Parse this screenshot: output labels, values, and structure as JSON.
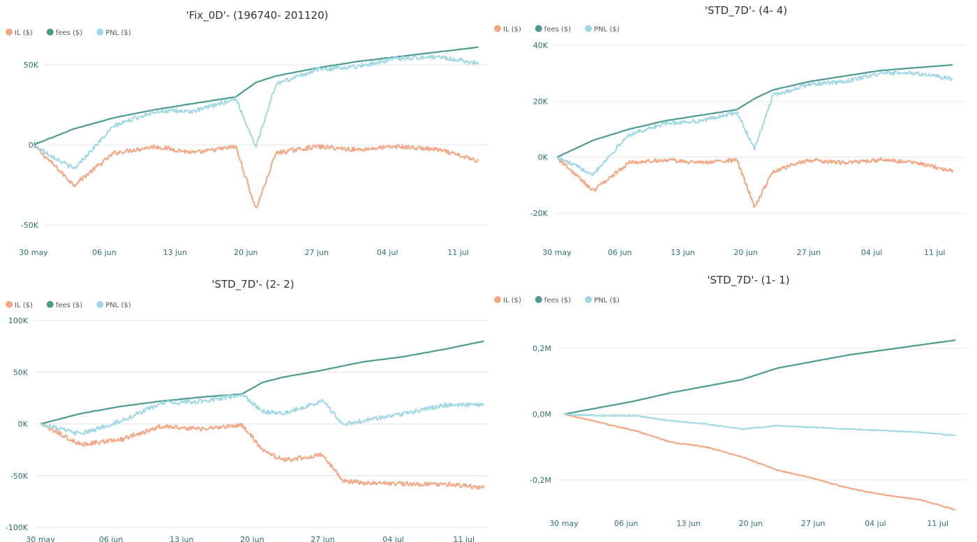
{
  "chart_data": [
    {
      "type": "line",
      "title": "'Fix_0D'- (196740- 201120)",
      "legend": [
        "IL ($)",
        "fees ($)",
        "PNL ($)"
      ],
      "legend_position": "top-left",
      "grid": true,
      "x_ticks": [
        "30 may",
        "06 jun",
        "13 jun",
        "20 jun",
        "27 jun",
        "04 jul",
        "11 jul"
      ],
      "y_ticks": [
        "50K",
        "0K",
        "-50K"
      ],
      "y_tick_values": [
        50000,
        0,
        -50000
      ],
      "ylim": [
        -55000,
        72000
      ],
      "x_days": [
        0,
        4,
        8,
        12,
        16,
        20,
        22,
        24,
        28,
        32,
        36,
        40,
        44
      ],
      "series": [
        {
          "name": "IL ($)",
          "color": "#f4a582",
          "values": [
            0,
            -25000,
            -5000,
            -1000,
            -5000,
            -1000,
            -40000,
            -5000,
            -1000,
            -3000,
            -1000,
            -3000,
            -10000
          ]
        },
        {
          "name": "fees ($)",
          "color": "#4d9a91",
          "values": [
            0,
            10000,
            17000,
            22000,
            26000,
            30000,
            39000,
            43000,
            48000,
            52000,
            55000,
            58000,
            61000
          ]
        },
        {
          "name": "PNL ($)",
          "color": "#9fd8e3",
          "values": [
            0,
            -15000,
            12000,
            21000,
            21000,
            29000,
            -1000,
            38000,
            47000,
            49000,
            54000,
            55000,
            51000
          ]
        }
      ]
    },
    {
      "type": "line",
      "title": "'STD_7D'- (4- 4)",
      "legend": [
        "IL ($)",
        "fees ($)",
        "PNL ($)"
      ],
      "legend_position": "top-left",
      "grid": true,
      "x_ticks": [
        "30 may",
        "06 jun",
        "13 jun",
        "20 jun",
        "27 jun",
        "04 jul",
        "11 jul"
      ],
      "y_ticks": [
        "40K",
        "20K",
        "0K",
        "-20K"
      ],
      "y_tick_values": [
        40000,
        20000,
        0,
        -20000
      ],
      "ylim": [
        -25000,
        40000
      ],
      "x_days": [
        0,
        4,
        8,
        12,
        16,
        20,
        22,
        24,
        28,
        32,
        36,
        40,
        44
      ],
      "series": [
        {
          "name": "IL ($)",
          "color": "#f4a582",
          "values": [
            0,
            -12000,
            -2000,
            -1000,
            -2000,
            -1000,
            -18000,
            -5000,
            -1000,
            -2000,
            -1000,
            -2000,
            -5000
          ]
        },
        {
          "name": "fees ($)",
          "color": "#4d9a91",
          "values": [
            0,
            6000,
            10000,
            13000,
            15000,
            17000,
            21000,
            24000,
            27000,
            29000,
            31000,
            32000,
            33000
          ]
        },
        {
          "name": "PNL ($)",
          "color": "#9fd8e3",
          "values": [
            0,
            -6000,
            8000,
            12000,
            13000,
            16000,
            3000,
            22000,
            26000,
            27000,
            30000,
            30000,
            28000
          ]
        }
      ]
    },
    {
      "type": "line",
      "title": "'STD_7D'- (2- 2)",
      "legend": [
        "IL ($)",
        "fees ($)",
        "PNL ($)"
      ],
      "legend_position": "top-left",
      "grid": true,
      "x_ticks": [
        "30 may",
        "06 jun",
        "13 jun",
        "20 jun",
        "27 jun",
        "04 jul",
        "11 jul"
      ],
      "y_ticks": [
        "100K",
        "50K",
        "0K",
        "-50K",
        "-100K"
      ],
      "y_tick_values": [
        100000,
        50000,
        0,
        -50000,
        -100000
      ],
      "ylim": [
        -100000,
        100000
      ],
      "x_days": [
        0,
        4,
        8,
        12,
        16,
        20,
        22,
        24,
        28,
        30,
        32,
        36,
        40,
        44
      ],
      "series": [
        {
          "name": "IL ($)",
          "color": "#f4a582",
          "values": [
            0,
            -20000,
            -15000,
            -2000,
            -5000,
            -1000,
            -25000,
            -35000,
            -30000,
            -55000,
            -57000,
            -58000,
            -58000,
            -62000
          ]
        },
        {
          "name": "fees ($)",
          "color": "#4d9a91",
          "values": [
            0,
            10000,
            17000,
            22000,
            26000,
            29000,
            40000,
            45000,
            52000,
            56000,
            60000,
            65000,
            72000,
            80000
          ]
        },
        {
          "name": "PNL ($)",
          "color": "#9fd8e3",
          "values": [
            0,
            -10000,
            3000,
            20000,
            22000,
            28000,
            12000,
            10000,
            22000,
            0,
            3000,
            10000,
            18000,
            18000
          ]
        }
      ]
    },
    {
      "type": "line",
      "title": "'STD_7D'- (1- 1)",
      "legend": [
        "IL ($)",
        "fees ($)",
        "PNL ($)"
      ],
      "legend_position": "top-left",
      "grid": true,
      "x_ticks": [
        "30 may",
        "06 jun",
        "13 jun",
        "20 jun",
        "27 jun",
        "04 jul",
        "11 jul"
      ],
      "y_ticks": [
        "0,2M",
        "0,0M",
        "-0,2M"
      ],
      "y_tick_values": [
        200000,
        0,
        -200000
      ],
      "ylim": [
        -295000,
        265000
      ],
      "x_days": [
        0,
        4,
        8,
        12,
        16,
        20,
        24,
        28,
        32,
        36,
        40,
        44
      ],
      "series": [
        {
          "name": "IL ($)",
          "color": "#f4a582",
          "values": [
            0,
            -25000,
            -50000,
            -85000,
            -100000,
            -130000,
            -170000,
            -195000,
            -225000,
            -245000,
            -260000,
            -290000
          ]
        },
        {
          "name": "fees ($)",
          "color": "#4d9a91",
          "values": [
            0,
            20000,
            40000,
            65000,
            85000,
            105000,
            140000,
            160000,
            180000,
            195000,
            210000,
            225000
          ]
        },
        {
          "name": "PNL ($)",
          "color": "#9fd8e3",
          "values": [
            0,
            -5000,
            -5000,
            -20000,
            -30000,
            -45000,
            -35000,
            -40000,
            -45000,
            -50000,
            -55000,
            -65000
          ]
        }
      ]
    }
  ]
}
